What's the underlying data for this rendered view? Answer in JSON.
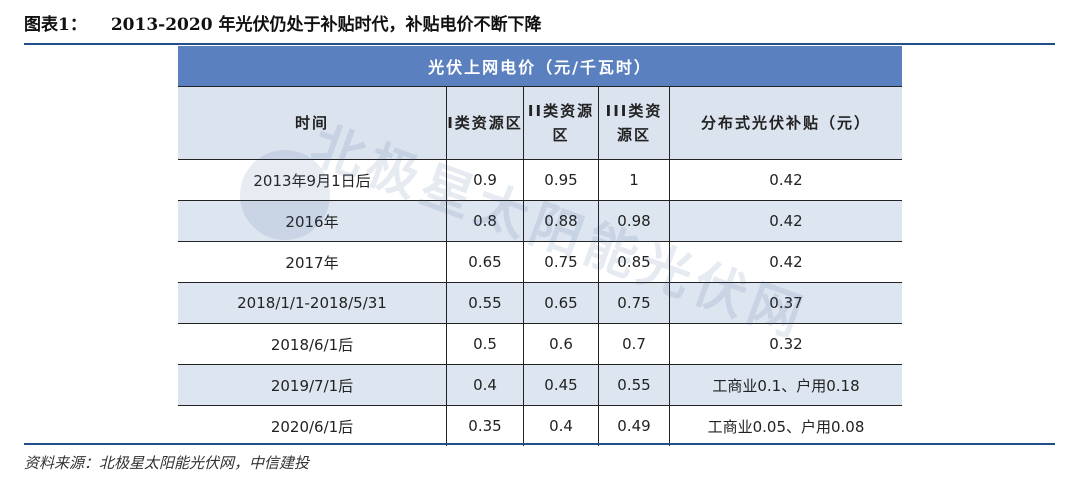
{
  "figure": {
    "label": "图表1：",
    "title": "2013-2020 年光伏仍处于补贴时代，补贴电价不断下降"
  },
  "table": {
    "title": "光伏上网电价（元/千瓦时）",
    "headers": [
      "时间",
      "I类资源区",
      "II类资源区",
      "III类资源区",
      "分布式光伏补贴（元）"
    ],
    "rows": [
      [
        "2013年9月1日后",
        "0.9",
        "0.95",
        "1",
        "0.42"
      ],
      [
        "2016年",
        "0.8",
        "0.88",
        "0.98",
        "0.42"
      ],
      [
        "2017年",
        "0.65",
        "0.75",
        "0.85",
        "0.42"
      ],
      [
        "2018/1/1-2018/5/31",
        "0.55",
        "0.65",
        "0.75",
        "0.37"
      ],
      [
        "2018/6/1后",
        "0.5",
        "0.6",
        "0.7",
        "0.32"
      ],
      [
        "2019/7/1后",
        "0.4",
        "0.45",
        "0.55",
        "工商业0.1、户用0.18"
      ],
      [
        "2020/6/1后",
        "0.35",
        "0.4",
        "0.49",
        "工商业0.05、户用0.08"
      ]
    ]
  },
  "watermark": "北极星太阳能光伏网",
  "source": "资料来源：北极星太阳能光伏网，中信建投",
  "colors": {
    "header": "#5a80bf",
    "stripe": "#dde5f0",
    "rule": "#1f4e89"
  }
}
